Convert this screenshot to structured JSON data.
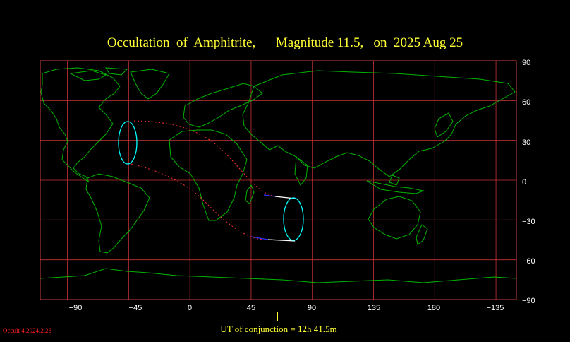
{
  "title": "Occultation  of  Amphitrite,      Magnitude 11.5,   on  2025 Aug 25",
  "map": {
    "x_ticks": [
      "−90",
      "−45",
      "0",
      "45",
      "90",
      "135",
      "180",
      "−135"
    ],
    "y_ticks": [
      "90",
      "60",
      "30",
      "0",
      "−30",
      "−60",
      "−90"
    ],
    "longitude_range": [
      -110,
      240
    ],
    "latitude_range": [
      -90,
      90
    ],
    "grid_longitudes": [
      -90,
      -45,
      0,
      45,
      90,
      135,
      180,
      225
    ],
    "grid_latitudes": [
      60,
      30,
      0,
      -30,
      -60
    ],
    "colors": {
      "frame": "#d04040",
      "grid": "#c83232",
      "coast": "#00b400",
      "path": "#ff3030",
      "limits": "#00ffff",
      "track_white": "#ffffff",
      "track_blue": "#3030ff"
    }
  },
  "utc_text": "UT of conjunction = 12h 41.5m",
  "version": "Occult 4.2024.2.23"
}
